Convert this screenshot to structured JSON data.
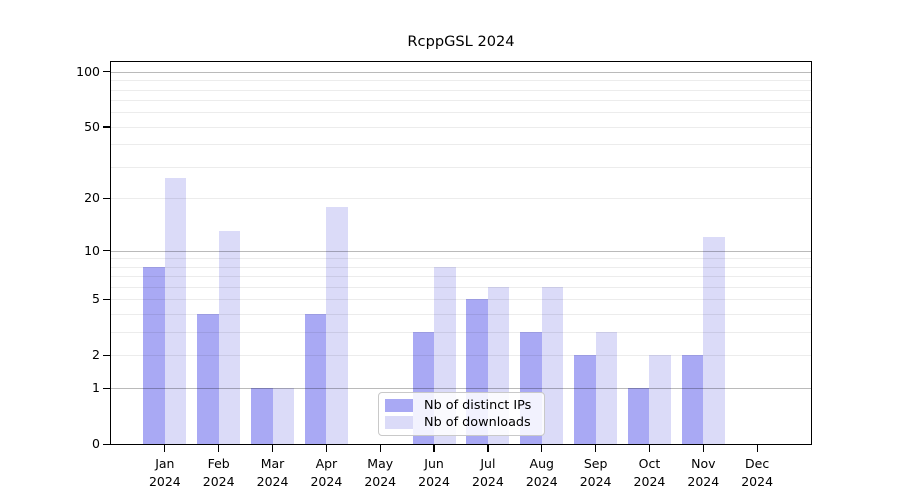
{
  "chart_data": {
    "type": "bar",
    "title": "RcppGSL 2024",
    "categories": [
      "Jan",
      "Feb",
      "Mar",
      "Apr",
      "May",
      "Jun",
      "Jul",
      "Aug",
      "Sep",
      "Oct",
      "Nov",
      "Dec"
    ],
    "year_label": "2024",
    "series": [
      {
        "name": "Nb of distinct IPs",
        "key": "distinct-ips",
        "color": "#a9a9f4",
        "values": [
          8,
          4,
          1,
          4,
          0,
          3,
          5,
          3,
          2,
          1,
          2,
          0
        ]
      },
      {
        "name": "Nb of downloads",
        "key": "downloads",
        "color": "#dbdbf8",
        "values": [
          26,
          13,
          1,
          18,
          0,
          8,
          6,
          6,
          3,
          2,
          12,
          0
        ]
      }
    ],
    "yscale": "log1p",
    "ylim": [
      0,
      113
    ],
    "yticks": [
      0,
      1,
      2,
      5,
      10,
      20,
      50,
      100
    ],
    "grid_major": [
      1,
      10,
      100
    ],
    "grid_minor": [
      2,
      3,
      4,
      5,
      6,
      7,
      8,
      9,
      20,
      30,
      40,
      50,
      60,
      70,
      80,
      90
    ],
    "grid": "on",
    "legend_position": "lower-center",
    "xlabel": "",
    "ylabel": ""
  }
}
